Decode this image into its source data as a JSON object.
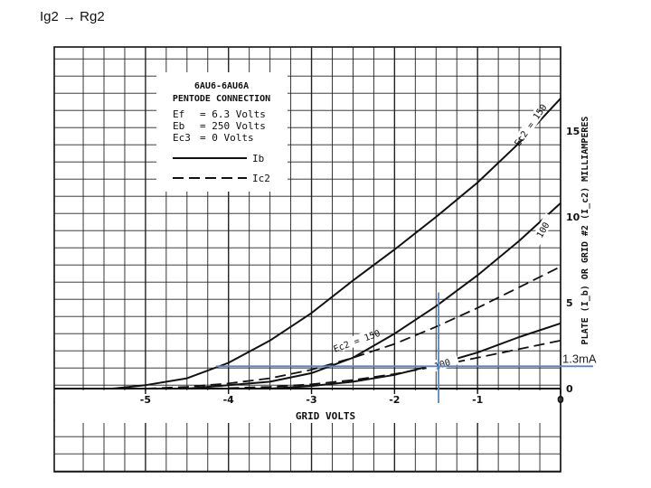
{
  "slide": {
    "title": "Ig2 → Rg2"
  },
  "chart_data": {
    "type": "line",
    "xlabel": "GRID VOLTS",
    "ylabel": "PLATE (I_b) OR GRID #2 (I_c2) MILLIAMPERES",
    "xlim": [
      -5.5,
      0
    ],
    "ylim": [
      0,
      17
    ],
    "x_ticks": [
      -5,
      -4,
      -3,
      -2,
      -1,
      0
    ],
    "x_tick_labels": [
      "-5",
      "-4",
      "-3",
      "-2",
      "-1",
      "0"
    ],
    "y_ticks": [
      0,
      5,
      10,
      15
    ],
    "y_tick_labels": [
      "0",
      "5",
      "10",
      "15"
    ],
    "legend": {
      "title_line1": "6AU6-6AU6A",
      "title_line2": "PENTODE CONNECTION",
      "params": [
        {
          "label": "Ef",
          "value": "= 6.3 Volts"
        },
        {
          "label": "Eb",
          "value": "= 250 Volts"
        },
        {
          "label": "Ec3",
          "value": "=   0 Volts"
        }
      ],
      "solid_label": "Ib",
      "dashed_label": "Ic2",
      "placement": "top-left"
    },
    "series": [
      {
        "name": "Ec2 = 150",
        "kind": "Ib",
        "style": "solid",
        "x": [
          -5.4,
          -5.0,
          -4.5,
          -4.0,
          -3.5,
          -3.0,
          -2.5,
          -2.0,
          -1.5,
          -1.0,
          -0.5,
          0
        ],
        "y": [
          0.0,
          0.2,
          0.6,
          1.5,
          2.8,
          4.4,
          6.3,
          8.1,
          10.0,
          12.0,
          14.3,
          16.9
        ]
      },
      {
        "name": "100",
        "kind": "Ib",
        "style": "solid",
        "x": [
          -4.5,
          -4.0,
          -3.5,
          -3.0,
          -2.5,
          -2.0,
          -1.5,
          -1.0,
          -0.5,
          0
        ],
        "y": [
          0.0,
          0.2,
          0.4,
          0.9,
          1.8,
          3.2,
          4.8,
          6.6,
          8.6,
          10.8
        ]
      },
      {
        "name": "Ec2 = 150",
        "kind": "Ic2",
        "style": "dashed",
        "x": [
          -5.0,
          -4.5,
          -4.0,
          -3.5,
          -3.0,
          -2.5,
          -2.0,
          -1.5,
          -1.0,
          -0.5,
          0
        ],
        "y": [
          0.0,
          0.1,
          0.3,
          0.6,
          1.1,
          1.8,
          2.6,
          3.6,
          4.7,
          5.9,
          7.1
        ]
      },
      {
        "name": "100",
        "kind": "Ib",
        "style": "solid",
        "x": [
          -3.5,
          -3.0,
          -2.5,
          -2.0,
          -1.5,
          -1.0,
          -0.5,
          0
        ],
        "y": [
          0.0,
          0.15,
          0.4,
          0.8,
          1.4,
          2.1,
          3.0,
          3.8
        ]
      },
      {
        "name": "100",
        "kind": "Ic2",
        "style": "dashed",
        "x": [
          -4.2,
          -3.5,
          -3.0,
          -2.5,
          -2.0,
          -1.5,
          -1.0,
          -0.5,
          0
        ],
        "y": [
          0.0,
          0.1,
          0.25,
          0.5,
          0.85,
          1.3,
          1.8,
          2.3,
          2.8
        ]
      }
    ],
    "curve_labels": [
      {
        "text": "Ec2 = 150",
        "x": -0.35,
        "y": 15.3,
        "angle": -55
      },
      {
        "text": "100",
        "x": -0.2,
        "y": 9.2,
        "angle": -60
      },
      {
        "text": "Ec2 = 150",
        "x": -2.45,
        "y": 2.7,
        "angle": -20
      },
      {
        "text": "100",
        "x": -1.42,
        "y": 1.35,
        "angle": -18
      }
    ],
    "annotations": {
      "vertical_line_x": -1.47,
      "horizontal_line_y": 1.3,
      "horizontal_line_label": "1.3mA",
      "color": "#5b84c4"
    }
  }
}
